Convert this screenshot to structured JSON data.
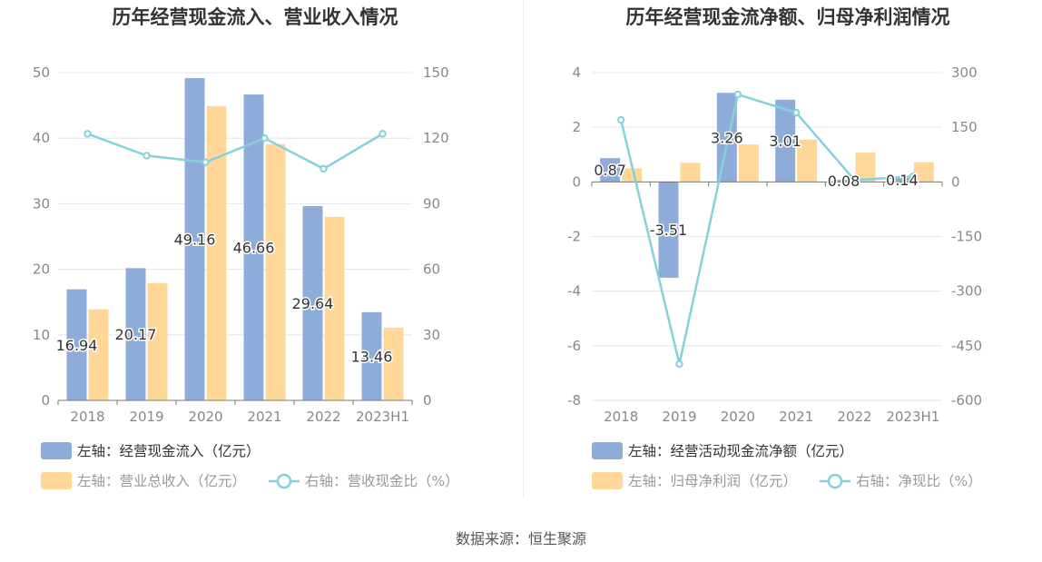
{
  "source_label": "数据来源：恒生聚源",
  "chart_data": [
    {
      "type": "bar",
      "title": "历年经营现金流入、营业收入情况",
      "categories": [
        "2018",
        "2019",
        "2020",
        "2021",
        "2022",
        "2023H1"
      ],
      "left_axis": {
        "min": 0,
        "max": 50,
        "step": 10,
        "ticks": [
          "0",
          "10",
          "20",
          "30",
          "40",
          "50"
        ]
      },
      "right_axis": {
        "min": 0,
        "max": 150,
        "step": 30,
        "ticks": [
          "0",
          "30",
          "60",
          "90",
          "120",
          "150"
        ]
      },
      "series": [
        {
          "name": "左轴：经营现金流入（亿元）",
          "kind": "bar",
          "axis": "left",
          "color": "#8eacd9",
          "values": [
            16.94,
            20.17,
            49.16,
            46.66,
            29.64,
            13.46
          ],
          "labels": [
            "16.94",
            "20.17",
            "49.16",
            "46.66",
            "29.64",
            "13.46"
          ]
        },
        {
          "name": "左轴：营业总收入（亿元）",
          "kind": "bar",
          "axis": "left",
          "color": "#ffd899",
          "values": [
            13.9,
            17.9,
            44.9,
            39.1,
            28.0,
            11.1
          ]
        },
        {
          "name": "右轴：营收现金比（%）",
          "kind": "line",
          "axis": "right",
          "color": "#85d1d9",
          "values": [
            122,
            112,
            109,
            120,
            106,
            122
          ]
        }
      ]
    },
    {
      "type": "bar",
      "title": "历年经营现金流净额、归母净利润情况",
      "categories": [
        "2018",
        "2019",
        "2020",
        "2021",
        "2022",
        "2023H1"
      ],
      "left_axis": {
        "min": -8,
        "max": 4,
        "step": 2,
        "ticks": [
          "-8",
          "-6",
          "-4",
          "-2",
          "0",
          "2",
          "4"
        ]
      },
      "right_axis": {
        "min": -600,
        "max": 300,
        "step": 150,
        "ticks": [
          "-600",
          "-450",
          "-300",
          "-150",
          "0",
          "150",
          "300"
        ]
      },
      "series": [
        {
          "name": "左轴：经营活动现金流净额（亿元）",
          "kind": "bar",
          "axis": "left",
          "color": "#8eacd9",
          "values": [
            0.87,
            -3.51,
            3.26,
            3.01,
            0.08,
            0.14
          ],
          "labels": [
            "0.87",
            "-3.51",
            "3.26",
            "3.01",
            "0.08",
            "0.14"
          ]
        },
        {
          "name": "左轴：归母净利润（亿元）",
          "kind": "bar",
          "axis": "left",
          "color": "#ffd899",
          "values": [
            0.5,
            0.7,
            1.37,
            1.55,
            1.07,
            0.72
          ]
        },
        {
          "name": "右轴：净现比（%）",
          "kind": "line",
          "axis": "right",
          "color": "#85d1d9",
          "values": [
            170,
            -500,
            240,
            190,
            5,
            15
          ]
        }
      ]
    }
  ]
}
